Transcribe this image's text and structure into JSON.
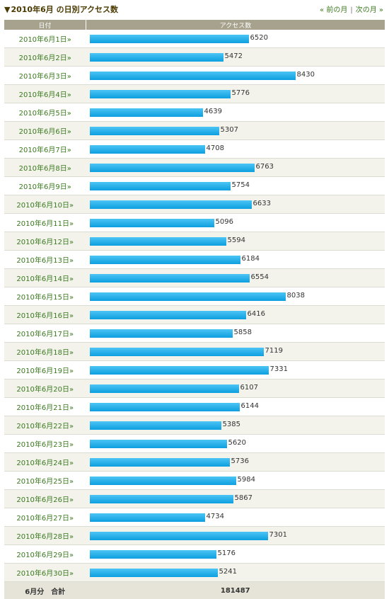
{
  "title": "2010年6月 の日別アクセス数",
  "nav": {
    "prev": "« 前の月",
    "sep": "|",
    "next": "次の月 »"
  },
  "columns": {
    "date": "日付",
    "access": "アクセス数"
  },
  "total": {
    "label": "6月分　合計",
    "value": "181487"
  },
  "colors": {
    "bar": "#1aa7e6",
    "date_link": "#3a7a1e",
    "header_bg": "#a7a28e"
  },
  "chart_data": {
    "type": "bar",
    "title": "2010年6月 の日別アクセス数",
    "xlabel": "日付",
    "ylabel": "アクセス数",
    "orientation": "horizontal",
    "categories": [
      "2010年6月1日»",
      "2010年6月2日»",
      "2010年6月3日»",
      "2010年6月4日»",
      "2010年6月5日»",
      "2010年6月6日»",
      "2010年6月7日»",
      "2010年6月8日»",
      "2010年6月9日»",
      "2010年6月10日»",
      "2010年6月11日»",
      "2010年6月12日»",
      "2010年6月13日»",
      "2010年6月14日»",
      "2010年6月15日»",
      "2010年6月16日»",
      "2010年6月17日»",
      "2010年6月18日»",
      "2010年6月19日»",
      "2010年6月20日»",
      "2010年6月21日»",
      "2010年6月22日»",
      "2010年6月23日»",
      "2010年6月24日»",
      "2010年6月25日»",
      "2010年6月26日»",
      "2010年6月27日»",
      "2010年6月28日»",
      "2010年6月29日»",
      "2010年6月30日»"
    ],
    "values": [
      6520,
      5472,
      8430,
      5776,
      4639,
      5307,
      4708,
      6763,
      5754,
      6633,
      5096,
      5594,
      6184,
      6554,
      8038,
      6416,
      5858,
      7119,
      7331,
      6107,
      6144,
      5385,
      5620,
      5736,
      5984,
      5867,
      4734,
      7301,
      5176,
      5241
    ],
    "xlim": [
      0,
      8430
    ]
  }
}
